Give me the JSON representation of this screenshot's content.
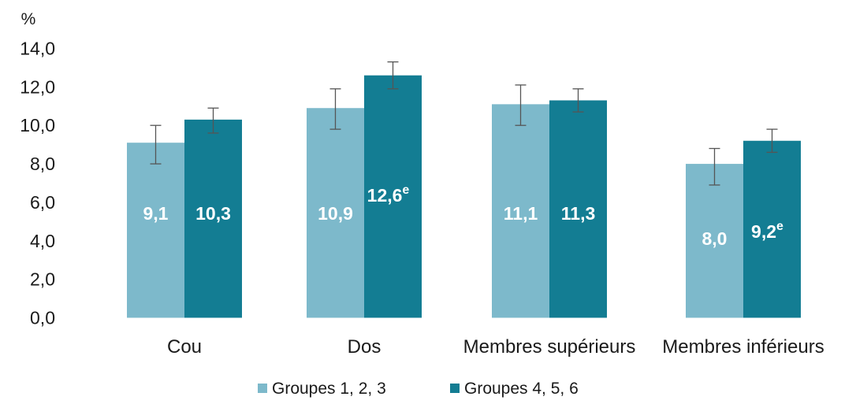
{
  "chart_data": {
    "type": "bar",
    "y_unit": "%",
    "categories": [
      "Cou",
      "Dos",
      "Membres supérieurs",
      "Membres inférieurs"
    ],
    "series": [
      {
        "name": "Groupes 1, 2, 3",
        "color": "#7db9cb",
        "values": [
          9.1,
          10.9,
          11.1,
          8.0
        ],
        "labels": [
          "9,1",
          "10,9",
          "11,1",
          "8,0"
        ],
        "label_superscripts": [
          "",
          "",
          "",
          ""
        ],
        "error_bars": [
          [
            8.0,
            10.0
          ],
          [
            9.8,
            11.9
          ],
          [
            10.0,
            12.1
          ],
          [
            6.9,
            8.8
          ]
        ]
      },
      {
        "name": "Groupes 4, 5, 6",
        "color": "#137d93",
        "values": [
          10.3,
          12.6,
          11.3,
          9.2
        ],
        "labels": [
          "10,3",
          "12,6",
          "11,3",
          "9,2"
        ],
        "label_superscripts": [
          "",
          "e",
          "",
          "e"
        ],
        "error_bars": [
          [
            9.6,
            10.9
          ],
          [
            11.9,
            13.3
          ],
          [
            10.7,
            11.9
          ],
          [
            8.6,
            9.8
          ]
        ]
      }
    ],
    "y_ticks": [
      "0,0",
      "2,0",
      "4,0",
      "6,0",
      "8,0",
      "10,0",
      "12,0",
      "14,0"
    ],
    "ylim": [
      0,
      14
    ],
    "grid": false,
    "legend_position": "bottom"
  }
}
